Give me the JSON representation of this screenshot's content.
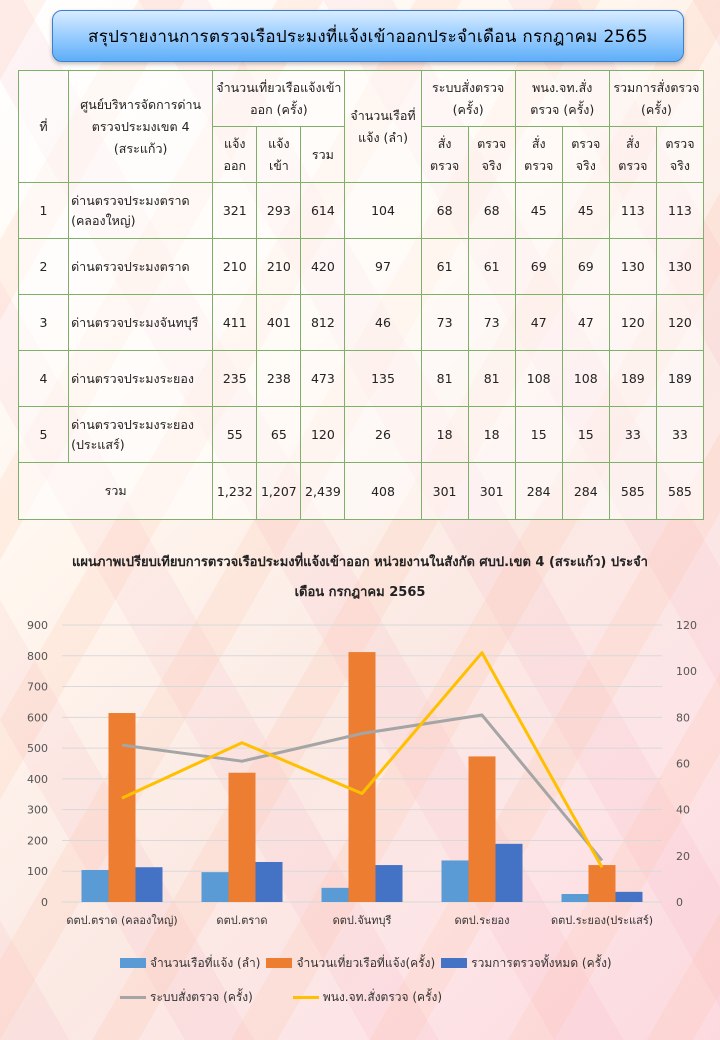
{
  "title": "สรุปรายงานการตรวจเรือประมงที่แจ้งเข้าออกประจำเดือน  กรกฎาคม  2565",
  "table": {
    "headers": {
      "no": "ที่",
      "center": "ศูนย์บริหารจัดการด่านตรวจประมงเขต 4 (สระแก้ว)",
      "trips_group": "จำนวนเที่ยวเรือแจ้งเข้าออก (ครั้ง)",
      "trips_out": "แจ้งออก",
      "trips_in": "แจ้งเข้า",
      "trips_total": "รวม",
      "boats": "จำนวนเรือที่แจ้ง (ลำ)",
      "sys_group": "ระบบสั่งตรวจ (ครั้ง)",
      "pnj_group": "พนง.จท.สั่งตรวจ (ครั้ง)",
      "all_group": "รวมการสั่งตรวจ (ครั้ง)",
      "ordered": "สั่งตรวจ",
      "actual": "ตรวจจริง"
    },
    "rows": [
      {
        "no": "1",
        "name": "ด่านตรวจประมงตราด (คลองใหญ่)",
        "out": "321",
        "in": "293",
        "total": "614",
        "boats": "104",
        "sys_order": "68",
        "sys_actual": "68",
        "pnj_order": "45",
        "pnj_actual": "45",
        "all_order": "113",
        "all_actual": "113"
      },
      {
        "no": "2",
        "name": "ด่านตรวจประมงตราด",
        "out": "210",
        "in": "210",
        "total": "420",
        "boats": "97",
        "sys_order": "61",
        "sys_actual": "61",
        "pnj_order": "69",
        "pnj_actual": "69",
        "all_order": "130",
        "all_actual": "130"
      },
      {
        "no": "3",
        "name": "ด่านตรวจประมงจันทบุรี",
        "out": "411",
        "in": "401",
        "total": "812",
        "boats": "46",
        "sys_order": "73",
        "sys_actual": "73",
        "pnj_order": "47",
        "pnj_actual": "47",
        "all_order": "120",
        "all_actual": "120"
      },
      {
        "no": "4",
        "name": "ด่านตรวจประมงระยอง",
        "out": "235",
        "in": "238",
        "total": "473",
        "boats": "135",
        "sys_order": "81",
        "sys_actual": "81",
        "pnj_order": "108",
        "pnj_actual": "108",
        "all_order": "189",
        "all_actual": "189"
      },
      {
        "no": "5",
        "name": "ด่านตรวจประมงระยอง (ประแสร์)",
        "out": "55",
        "in": "65",
        "total": "120",
        "boats": "26",
        "sys_order": "18",
        "sys_actual": "18",
        "pnj_order": "15",
        "pnj_actual": "15",
        "all_order": "33",
        "all_actual": "33"
      }
    ],
    "total": {
      "label": "รวม",
      "out": "1,232",
      "in": "1,207",
      "total": "2,439",
      "boats": "408",
      "sys_order": "301",
      "sys_actual": "301",
      "pnj_order": "284",
      "pnj_actual": "284",
      "all_order": "585",
      "all_actual": "585"
    }
  },
  "chart_data": {
    "type": "bar",
    "title": "แผนภาพเปรียบเทียบการตรวจเรือประมงที่แจ้งเข้าออก  หน่วยงานในสังกัด  ศบป.เขต  4 (สระแก้ว)  ประจำเดือน  กรกฎาคม  2565",
    "categories": [
      "ดตป.ตราด (คลองใหญ่)",
      "ดตป.ตราด",
      "ดตป.จันทบุรี",
      "ดตป.ระยอง",
      "ดตป.ระยอง(ประแสร์)"
    ],
    "ylim": [
      0,
      900
    ],
    "yticks": [
      "0",
      "100",
      "200",
      "300",
      "400",
      "500",
      "600",
      "700",
      "800",
      "900"
    ],
    "y2lim": [
      0,
      120
    ],
    "y2ticks": [
      "0",
      "20",
      "40",
      "60",
      "80",
      "100",
      "120"
    ],
    "grid": true,
    "legend_position": "bottom",
    "series": [
      {
        "name": "จำนวนเรือที่แจ้ง (ลำ)",
        "kind": "bar",
        "axis": "left",
        "color": "#5b9bd5",
        "values": [
          104,
          97,
          46,
          135,
          26
        ]
      },
      {
        "name": "จำนวนเที่ยวเรือที่แจ้ง(ครั้ง)",
        "kind": "bar",
        "axis": "left",
        "color": "#ed7d31",
        "values": [
          614,
          420,
          812,
          473,
          120
        ]
      },
      {
        "name": "รวมการตรวจทั้งหมด (ครั้ง)",
        "kind": "bar",
        "axis": "left",
        "color": "#4472c4",
        "values": [
          113,
          130,
          120,
          189,
          33
        ]
      },
      {
        "name": "ระบบสั่งตรวจ (ครั้ง)",
        "kind": "line",
        "axis": "right",
        "color": "#a5a5a5",
        "values": [
          68,
          61,
          73,
          81,
          18
        ]
      },
      {
        "name": "พนง.จท.สั่งตรวจ (ครั้ง)",
        "kind": "line",
        "axis": "right",
        "color": "#ffc000",
        "values": [
          45,
          69,
          47,
          108,
          15
        ]
      }
    ]
  }
}
